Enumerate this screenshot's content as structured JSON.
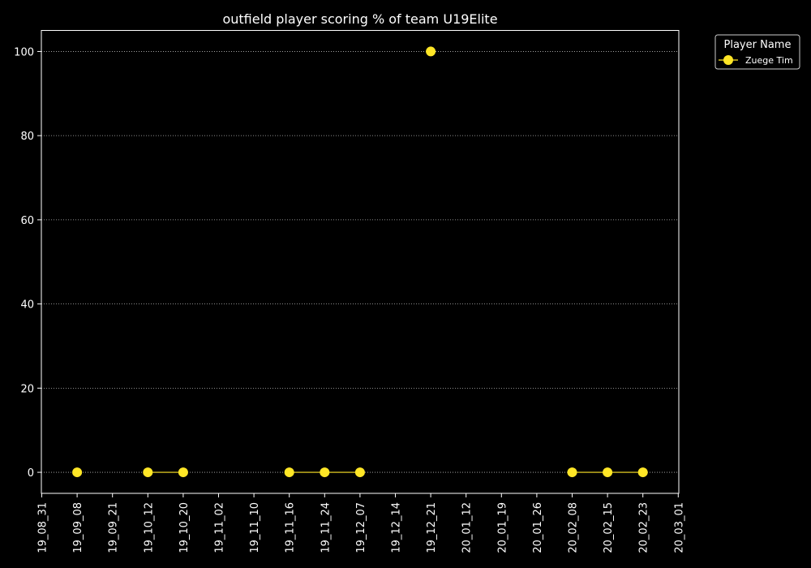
{
  "chart_data": {
    "type": "line",
    "title": "outfield player scoring % of team U19Elite",
    "xlabel": "",
    "ylabel": "",
    "x_ticks": [
      "19_08_31",
      "19_09_08",
      "19_09_21",
      "19_10_12",
      "19_10_20",
      "19_11_02",
      "19_11_10",
      "19_11_16",
      "19_11_24",
      "19_12_07",
      "19_12_14",
      "19_12_21",
      "20_01_12",
      "20_01_19",
      "20_01_26",
      "20_02_08",
      "20_02_15",
      "20_02_23",
      "20_03_01"
    ],
    "y_ticks": [
      0,
      20,
      40,
      60,
      80,
      100
    ],
    "ylim": [
      -5,
      105
    ],
    "grid": "horizontal dotted",
    "legend": {
      "title": "Player Name",
      "position": "outside-top-right"
    },
    "series": [
      {
        "name": "Zuege Tim",
        "color": "#FFE626",
        "points": [
          {
            "x": "19_09_08",
            "y": 0
          },
          {
            "x": "19_10_12",
            "y": 0
          },
          {
            "x": "19_10_20",
            "y": 0
          },
          {
            "x": "19_11_16",
            "y": 0
          },
          {
            "x": "19_11_24",
            "y": 0
          },
          {
            "x": "19_12_07",
            "y": 0
          },
          {
            "x": "19_12_21",
            "y": 100
          },
          {
            "x": "20_02_08",
            "y": 0
          },
          {
            "x": "20_02_15",
            "y": 0
          },
          {
            "x": "20_02_23",
            "y": 0
          }
        ],
        "segments": [
          [
            "19_10_12",
            "19_10_20"
          ],
          [
            "19_11_16",
            "19_11_24",
            "19_12_07"
          ],
          [
            "20_02_08",
            "20_02_15",
            "20_02_23"
          ]
        ]
      }
    ]
  }
}
